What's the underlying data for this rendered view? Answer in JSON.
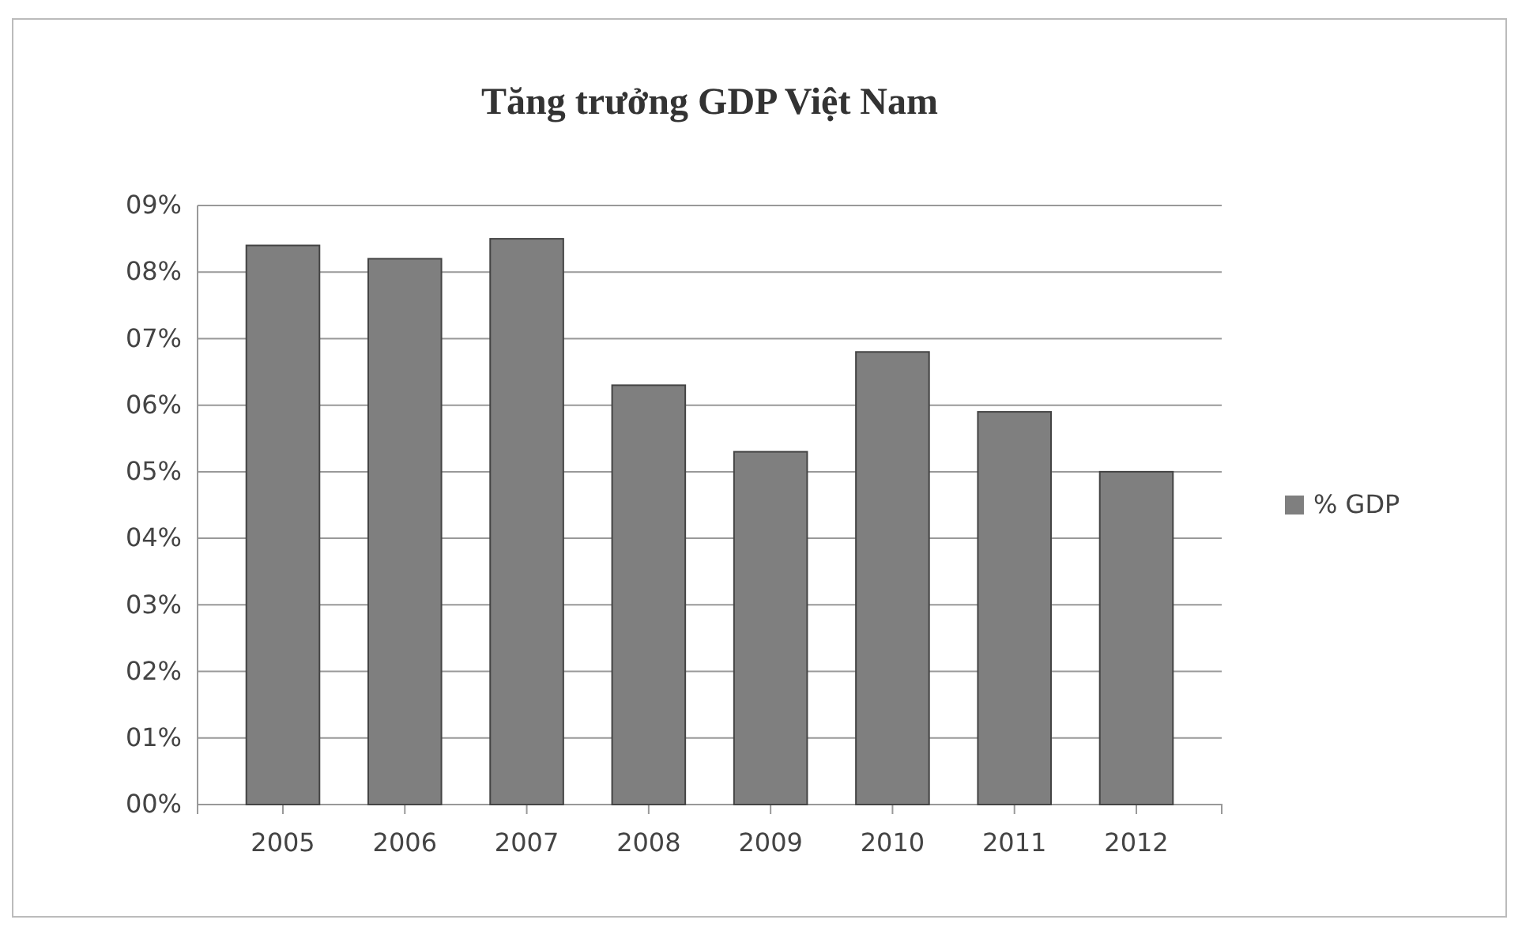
{
  "chart_data": {
    "type": "bar",
    "title": "Tăng trưởng GDP Việt Nam",
    "categories": [
      "2005",
      "2006",
      "2007",
      "2008",
      "2009",
      "2010",
      "2011",
      "2012"
    ],
    "series": [
      {
        "name": "% GDP",
        "color": "#7f7f7f",
        "values": [
          8.4,
          8.2,
          8.5,
          6.3,
          5.3,
          6.8,
          5.9,
          5.0
        ]
      }
    ],
    "ylim": [
      0,
      9
    ],
    "yticks": [
      {
        "value": 0,
        "label": "00%"
      },
      {
        "value": 1,
        "label": "01%"
      },
      {
        "value": 2,
        "label": "02%"
      },
      {
        "value": 3,
        "label": "03%"
      },
      {
        "value": 4,
        "label": "04%"
      },
      {
        "value": 5,
        "label": "05%"
      },
      {
        "value": 6,
        "label": "06%"
      },
      {
        "value": 7,
        "label": "07%"
      },
      {
        "value": 8,
        "label": "08%"
      },
      {
        "value": 9,
        "label": "09%"
      }
    ],
    "grid": "y",
    "legend": "right"
  }
}
